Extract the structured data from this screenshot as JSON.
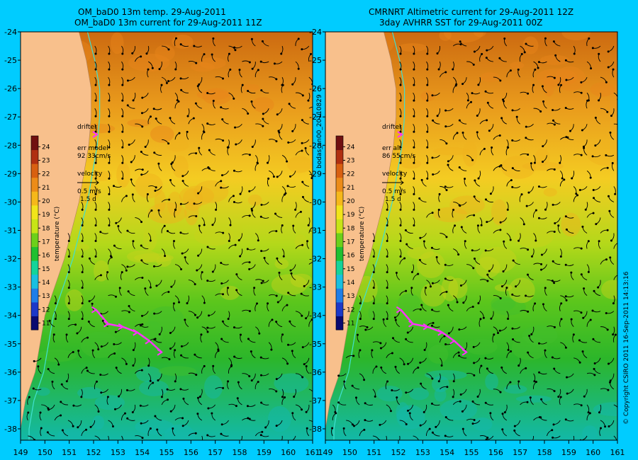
{
  "colors": {
    "page_bg": "#00ccff",
    "land": "#f8c08c",
    "coastline_contour": "#40e0d0",
    "drifter": "#ff33ff",
    "vectors": "#000000"
  },
  "panels": [
    {
      "title_line1": "OM_baD0 13m temp. 29-Aug-2011",
      "title_line2": "OM_baD0 13m current for 29-Aug-2011 11Z",
      "legend": {
        "drifter_label": "drifter",
        "err_label": "err model",
        "err_value": "92 33cm/s",
        "velocity_label": "velocity",
        "velocity_scale": "0.5 m/s",
        "velocity_time": "1.5 d"
      }
    },
    {
      "title_line1": "CMRNRT Altimetric current for 29-Aug-2011 12Z",
      "title_line2": "3day AVHRR SST for 29-Aug-2011 00Z",
      "legend": {
        "drifter_label": "drifter",
        "err_label": "err alt",
        "err_value": "86 55cm/s",
        "velocity_label": "velocity",
        "velocity_scale": "0.5 m/s",
        "velocity_time": "1.5 d"
      }
    }
  ],
  "map_extent": {
    "lon_min": 149,
    "lon_max": 161,
    "lat_min": -38.4,
    "lat_max": -24
  },
  "x_ticks": [
    "149",
    "150",
    "151",
    "152",
    "153",
    "154",
    "155",
    "156",
    "157",
    "158",
    "159",
    "160",
    "161"
  ],
  "y_ticks": [
    "-24",
    "-25",
    "-26",
    "-27",
    "-28",
    "-29",
    "-30",
    "-31",
    "-32",
    "-33",
    "-34",
    "-35",
    "-36",
    "-37",
    "-38"
  ],
  "colorbar": {
    "label": "temperature (°C)",
    "ticks": [
      "24",
      "23",
      "22",
      "21",
      "20",
      "19",
      "18",
      "17",
      "16",
      "15",
      "14",
      "13",
      "12",
      "11"
    ],
    "range": [
      10.5,
      24.8
    ],
    "colors": [
      "#0a0a70",
      "#1d38c8",
      "#1f7ee8",
      "#19c0e0",
      "#14d49a",
      "#20c030",
      "#6cd01a",
      "#c8e416",
      "#f2e41a",
      "#f6b81a",
      "#ec8c18",
      "#d86010",
      "#b03010",
      "#701010"
    ]
  },
  "side_label": "bodas_an00_20110829",
  "copyright": "© Copyright CSIRO 2011   16-Sep-2011 14:13:16",
  "drifter_track_lonlat": [
    [
      152.1,
      -33.8
    ],
    [
      152.6,
      -34.3
    ],
    [
      153.2,
      -34.4
    ],
    [
      153.8,
      -34.6
    ],
    [
      154.3,
      -34.9
    ],
    [
      154.8,
      -35.3
    ]
  ]
}
